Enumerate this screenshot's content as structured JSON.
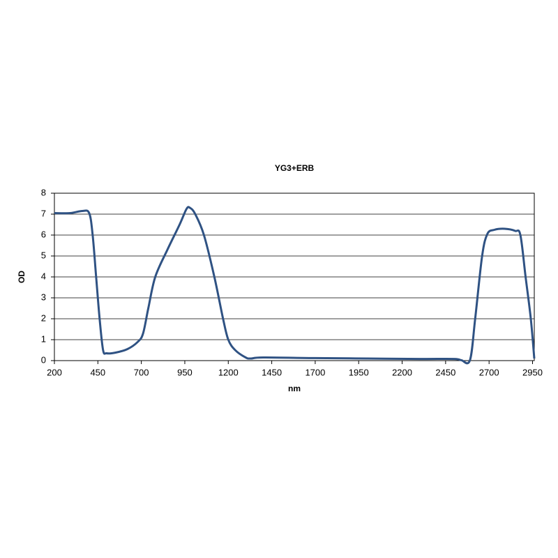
{
  "chart_data": {
    "type": "line",
    "title": "YG3+ERB",
    "x_label": "nm",
    "y_label": "OD",
    "x": [
      200,
      290,
      360,
      400,
      420,
      440,
      460,
      480,
      500,
      550,
      620,
      680,
      710,
      740,
      780,
      850,
      920,
      960,
      980,
      1010,
      1060,
      1120,
      1170,
      1200,
      1240,
      1300,
      1330,
      1400,
      1700,
      2000,
      2300,
      2500,
      2540,
      2590,
      2620,
      2660,
      2690,
      2730,
      2790,
      2850,
      2880,
      2910,
      2940,
      2960
    ],
    "values": [
      7.05,
      7.05,
      7.15,
      7.05,
      6.0,
      4.0,
      2.0,
      0.5,
      0.35,
      0.38,
      0.55,
      0.9,
      1.3,
      2.5,
      4.0,
      5.3,
      6.5,
      7.25,
      7.3,
      7.0,
      6.0,
      4.0,
      2.0,
      1.0,
      0.5,
      0.15,
      0.1,
      0.15,
      0.12,
      0.1,
      0.08,
      0.08,
      0.02,
      0.02,
      2.0,
      5.0,
      6.05,
      6.25,
      6.3,
      6.2,
      6.0,
      4.0,
      2.0,
      0.1
    ],
    "color": "#2f5283",
    "xlim": [
      200,
      2960
    ],
    "ylim": [
      0,
      8
    ],
    "xticks": [
      200,
      450,
      700,
      950,
      1200,
      1450,
      1700,
      1950,
      2200,
      2450,
      2700,
      2950
    ],
    "yticks": [
      0,
      1,
      2,
      3,
      4,
      5,
      6,
      7,
      8
    ],
    "grid": true
  }
}
